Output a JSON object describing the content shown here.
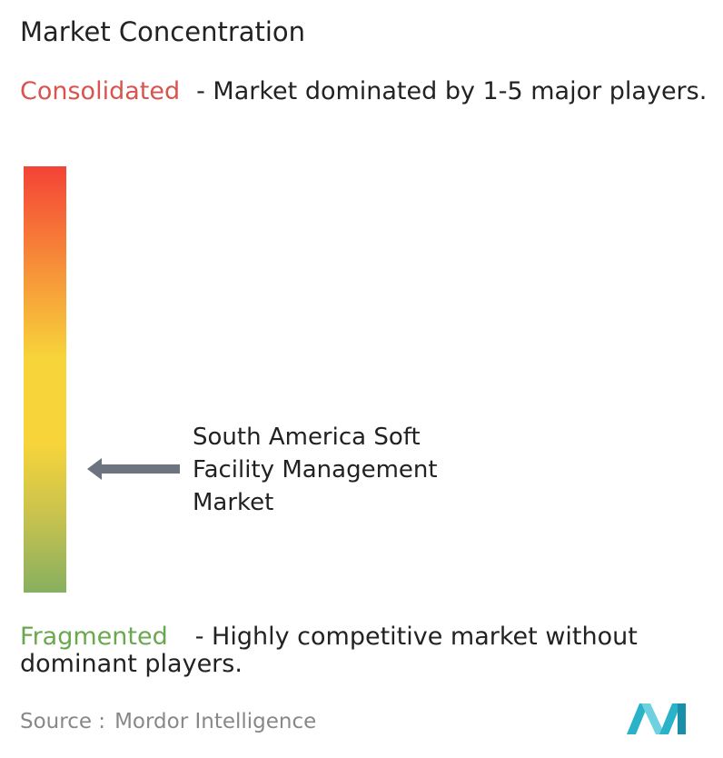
{
  "title": "Market Concentration",
  "top": {
    "label": "Consolidated",
    "description": "- Market dominated by 1-5 major players."
  },
  "marker": {
    "label": "South America Soft Facility Management Market"
  },
  "bottom": {
    "label": "Fragmented",
    "description": "- Highly competitive market without dominant players."
  },
  "source": {
    "prefix": "Source :",
    "name": "Mordor Intelligence"
  }
}
